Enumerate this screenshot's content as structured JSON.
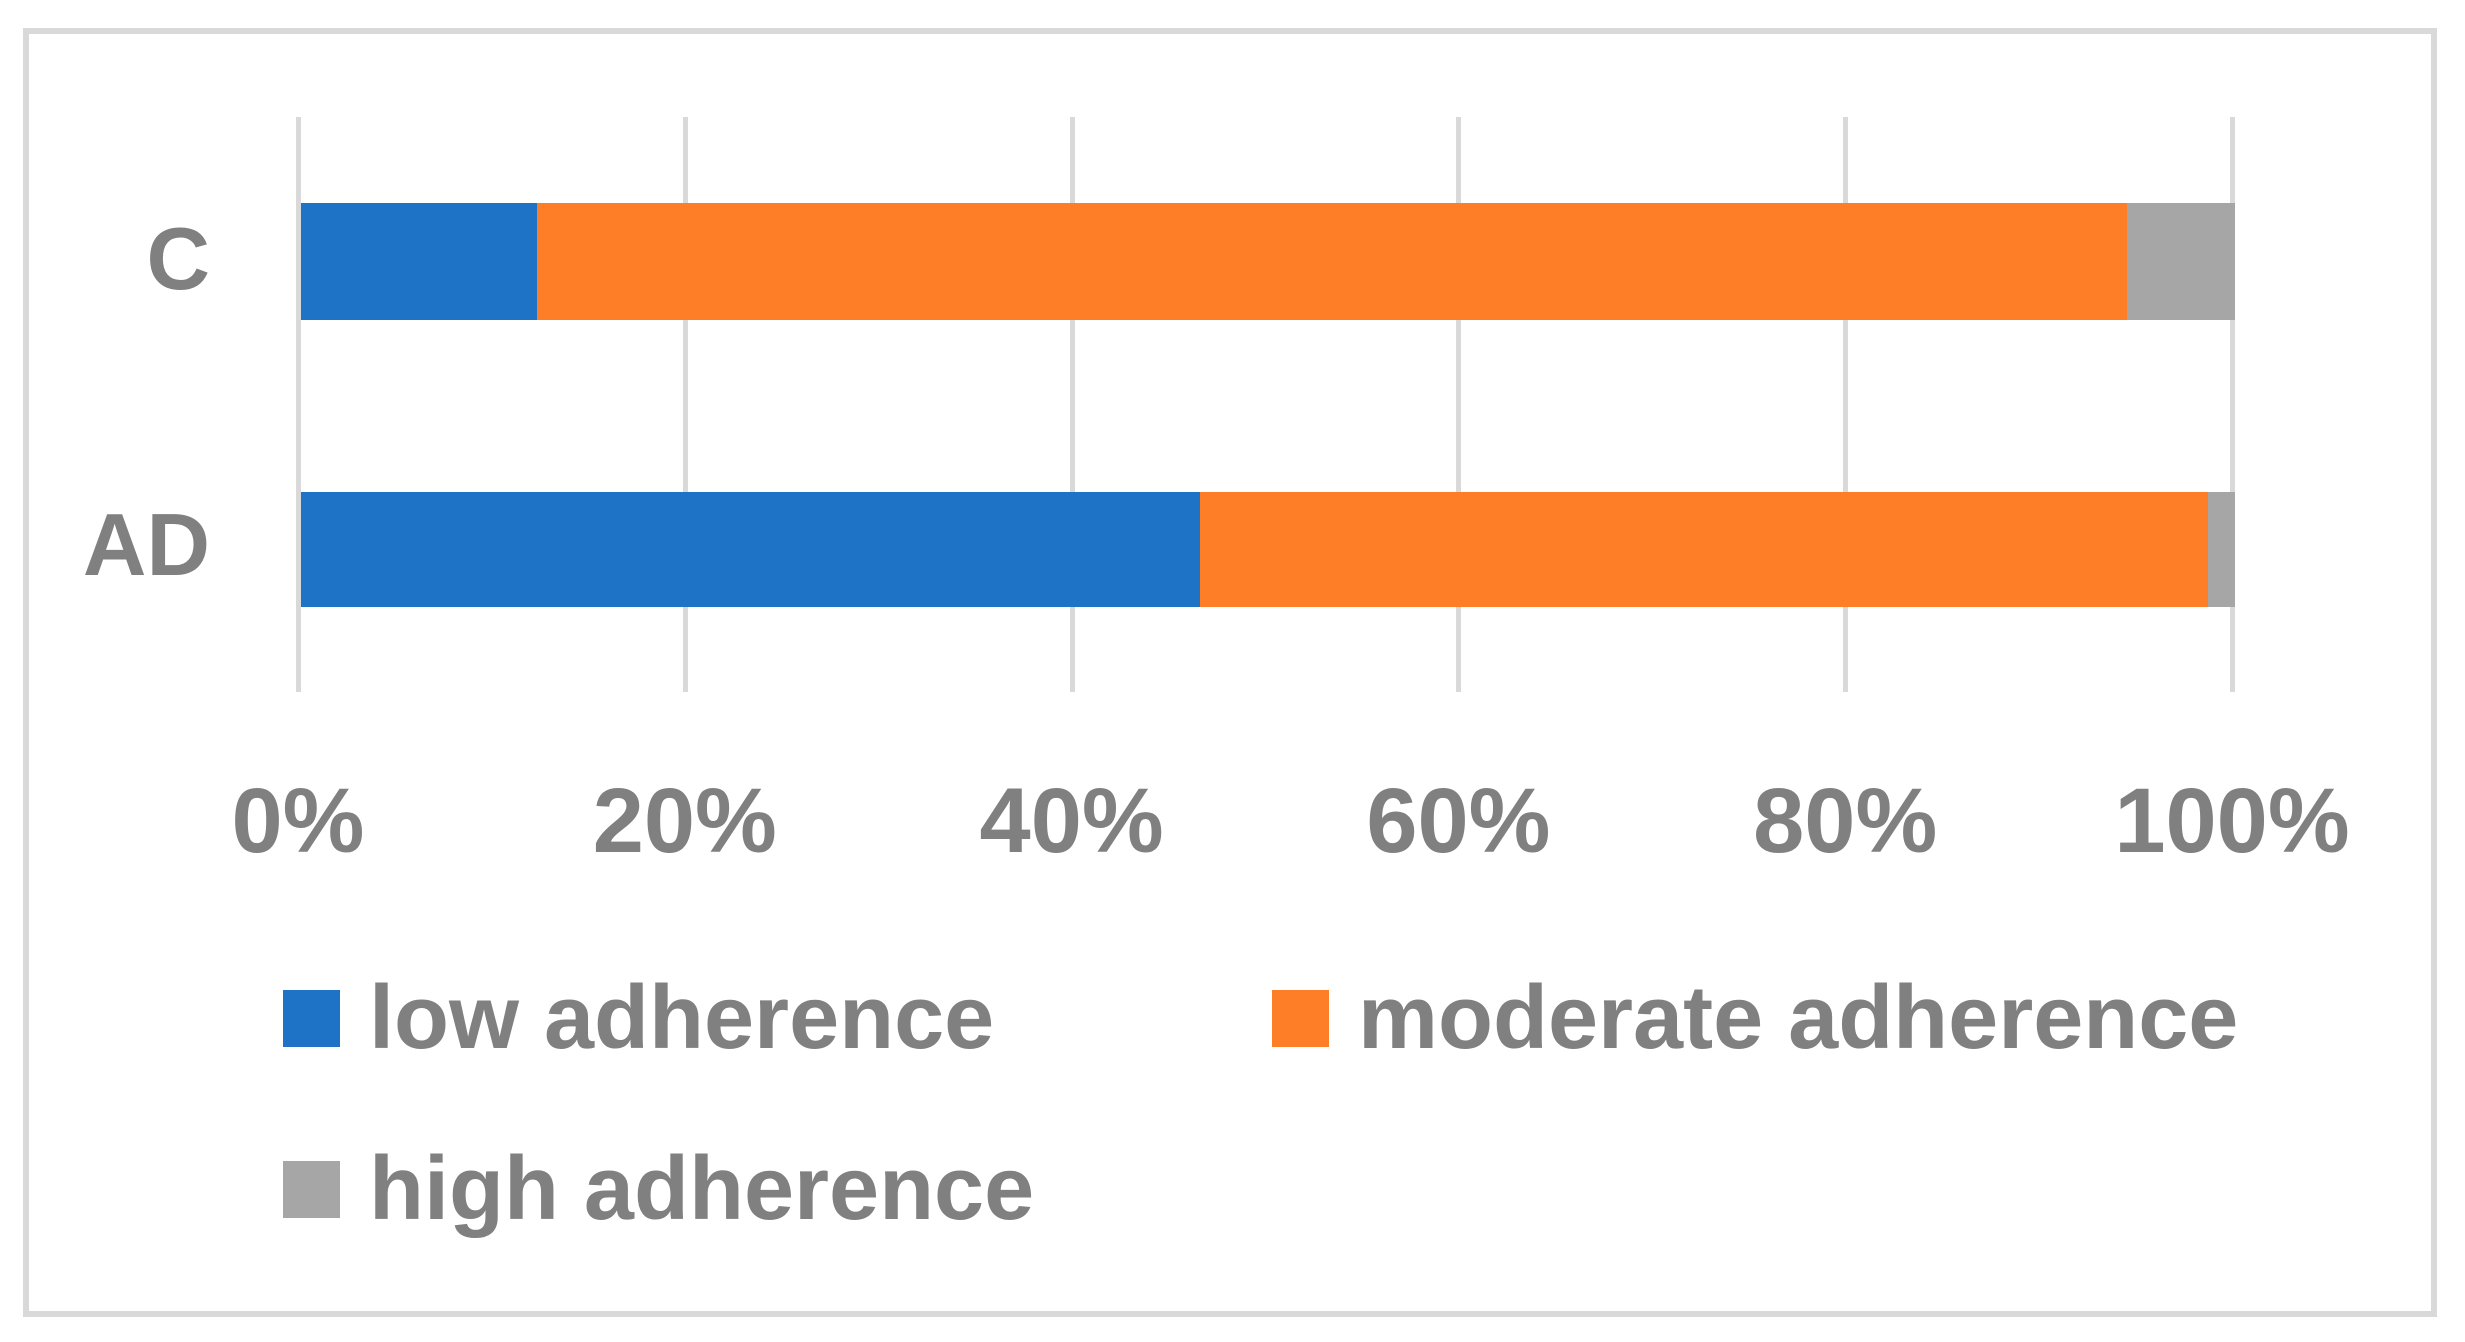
{
  "chart_data": {
    "type": "bar",
    "orientation": "horizontal",
    "stacked": true,
    "units": "percent",
    "title": "",
    "xlabel": "",
    "ylabel": "",
    "categories": [
      "C",
      "AD"
    ],
    "series": [
      {
        "name": "low adherence",
        "color": "#1e73c7",
        "values": [
          12.2,
          46.5
        ]
      },
      {
        "name": "moderate adherence",
        "color": "#fd7e27",
        "values": [
          82.2,
          52.1
        ]
      },
      {
        "name": "high adherence",
        "color": "#a6a6a6",
        "values": [
          5.6,
          1.4
        ]
      }
    ],
    "x_ticks": [
      "0%",
      "20%",
      "40%",
      "60%",
      "80%",
      "100%"
    ],
    "xlim": [
      0,
      100
    ],
    "grid": "vertical-gridlines",
    "legend_position": "bottom"
  },
  "palette": {
    "gridline_color": "#d9d9d9",
    "frame_border_color": "#d9d9d9",
    "text_color": "#808080",
    "background": "#ffffff"
  }
}
